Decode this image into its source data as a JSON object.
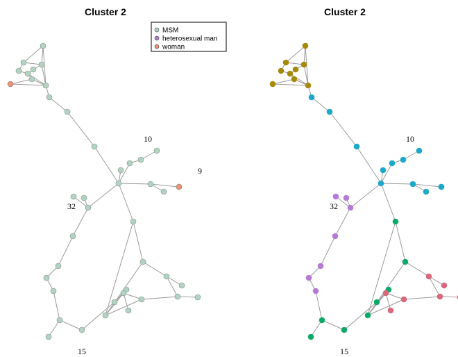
{
  "panels": [
    {
      "title": "Cluster 2"
    },
    {
      "title": "Cluster 2"
    }
  ],
  "legend": [
    {
      "label": "MSM",
      "color": "#b2d3c2"
    },
    {
      "label": "heterosexual man",
      "color": "#b57ad4"
    },
    {
      "label": "woman",
      "color": "#f09070"
    }
  ],
  "node_labels": [
    {
      "text": "10",
      "node": "n10"
    },
    {
      "text": "9",
      "node": "n9"
    },
    {
      "text": "32",
      "node": "n32"
    },
    {
      "text": "15",
      "node": "n15"
    }
  ],
  "community_colors": {
    "olive": "#a58a0a",
    "cyan": "#1ba8c9",
    "purple": "#b57ad4",
    "green": "#0da86a",
    "pink": "#d8687c"
  },
  "chart_data": {
    "type": "network",
    "nodes": [
      {
        "id": "a1",
        "group": "MSM",
        "community": "olive"
      },
      {
        "id": "a2",
        "group": "MSM",
        "community": "olive"
      },
      {
        "id": "a3",
        "group": "MSM",
        "community": "olive"
      },
      {
        "id": "a4",
        "group": "MSM",
        "community": "olive"
      },
      {
        "id": "a5",
        "group": "MSM",
        "community": "olive"
      },
      {
        "id": "a6",
        "group": "MSM",
        "community": "olive"
      },
      {
        "id": "a7",
        "group": "MSM",
        "community": "olive"
      },
      {
        "id": "a8",
        "group": "MSM",
        "community": "olive"
      },
      {
        "id": "aw",
        "group": "woman",
        "community": "olive"
      },
      {
        "id": "b1",
        "group": "MSM",
        "community": "cyan"
      },
      {
        "id": "b2",
        "group": "MSM",
        "community": "cyan"
      },
      {
        "id": "b3",
        "group": "MSM",
        "community": "cyan"
      },
      {
        "id": "b4",
        "group": "MSM",
        "community": "cyan"
      },
      {
        "id": "hub",
        "group": "MSM",
        "community": "cyan"
      },
      {
        "id": "b6",
        "group": "MSM",
        "community": "cyan"
      },
      {
        "id": "b7",
        "group": "MSM",
        "community": "cyan"
      },
      {
        "id": "n10",
        "group": "MSM",
        "community": "cyan"
      },
      {
        "id": "b9",
        "group": "MSM",
        "community": "cyan"
      },
      {
        "id": "b10",
        "group": "MSM",
        "community": "cyan"
      },
      {
        "id": "b11",
        "group": "MSM",
        "community": "cyan"
      },
      {
        "id": "n9",
        "group": "woman",
        "community": "cyan"
      },
      {
        "id": "n32",
        "group": "MSM",
        "community": "purple"
      },
      {
        "id": "c2",
        "group": "MSM",
        "community": "purple"
      },
      {
        "id": "c3",
        "group": "MSM",
        "community": "purple"
      },
      {
        "id": "c4",
        "group": "MSM",
        "community": "purple"
      },
      {
        "id": "c5",
        "group": "MSM",
        "community": "purple"
      },
      {
        "id": "c6",
        "group": "MSM",
        "community": "purple"
      },
      {
        "id": "c7",
        "group": "MSM",
        "community": "purple"
      },
      {
        "id": "d1",
        "group": "MSM",
        "community": "green"
      },
      {
        "id": "d2",
        "group": "MSM",
        "community": "green"
      },
      {
        "id": "d3",
        "group": "MSM",
        "community": "green"
      },
      {
        "id": "n15",
        "group": "MSM",
        "community": "green"
      },
      {
        "id": "d5",
        "group": "MSM",
        "community": "green"
      },
      {
        "id": "d6",
        "group": "MSM",
        "community": "green"
      },
      {
        "id": "d7",
        "group": "MSM",
        "community": "green"
      },
      {
        "id": "d8",
        "group": "MSM",
        "community": "green"
      },
      {
        "id": "e1",
        "group": "MSM",
        "community": "pink"
      },
      {
        "id": "e2",
        "group": "MSM",
        "community": "pink"
      },
      {
        "id": "e3",
        "group": "MSM",
        "community": "pink"
      },
      {
        "id": "e4",
        "group": "MSM",
        "community": "pink"
      },
      {
        "id": "e5",
        "group": "MSM",
        "community": "pink"
      },
      {
        "id": "e6",
        "group": "MSM",
        "community": "pink"
      },
      {
        "id": "e7",
        "group": "MSM",
        "community": "pink"
      }
    ],
    "edges": [
      [
        "a1",
        "a2"
      ],
      [
        "a1",
        "a3"
      ],
      [
        "a2",
        "a3"
      ],
      [
        "a2",
        "a4"
      ],
      [
        "a3",
        "a5"
      ],
      [
        "a4",
        "a6"
      ],
      [
        "a5",
        "a6"
      ],
      [
        "a6",
        "a7"
      ],
      [
        "a7",
        "a8"
      ],
      [
        "a6",
        "a8"
      ],
      [
        "a3",
        "a8"
      ],
      [
        "a1",
        "a8"
      ],
      [
        "a7",
        "aw"
      ],
      [
        "a8",
        "aw"
      ],
      [
        "a8",
        "b1"
      ],
      [
        "b1",
        "b2"
      ],
      [
        "b2",
        "b3"
      ],
      [
        "b3",
        "hub"
      ],
      [
        "hub",
        "b4"
      ],
      [
        "hub",
        "b6"
      ],
      [
        "b6",
        "n10"
      ],
      [
        "n10",
        "b7"
      ],
      [
        "hub",
        "b9"
      ],
      [
        "b9",
        "b10"
      ],
      [
        "b9",
        "n9"
      ],
      [
        "hub",
        "n32"
      ],
      [
        "n32",
        "c2"
      ],
      [
        "n32",
        "c3"
      ],
      [
        "n32",
        "c4"
      ],
      [
        "c4",
        "c5"
      ],
      [
        "c5",
        "c6"
      ],
      [
        "c6",
        "c7"
      ],
      [
        "c7",
        "d1"
      ],
      [
        "d1",
        "n15"
      ],
      [
        "d1",
        "d2"
      ],
      [
        "hub",
        "d3"
      ],
      [
        "d3",
        "d5"
      ],
      [
        "d5",
        "d6"
      ],
      [
        "n15",
        "d7"
      ],
      [
        "d7",
        "d8"
      ],
      [
        "d8",
        "d6"
      ],
      [
        "d5",
        "e1"
      ],
      [
        "e1",
        "e2"
      ],
      [
        "d8",
        "e3"
      ],
      [
        "e3",
        "e4"
      ],
      [
        "e3",
        "e5"
      ],
      [
        "e5",
        "e6"
      ],
      [
        "e6",
        "e7"
      ],
      [
        "e1",
        "e6"
      ],
      [
        "d6",
        "e5"
      ],
      [
        "d6",
        "d3"
      ],
      [
        "d8",
        "e3"
      ]
    ]
  }
}
